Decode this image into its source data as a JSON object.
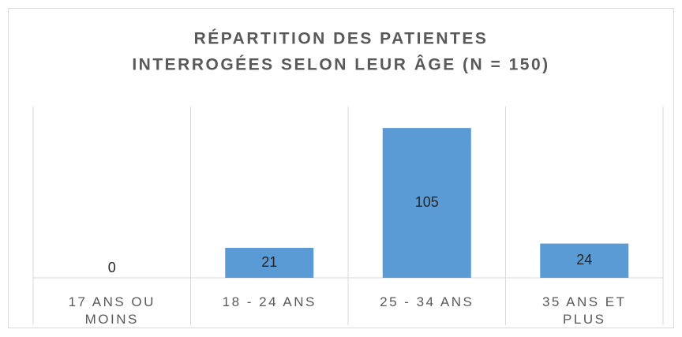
{
  "chart_data": {
    "type": "bar",
    "title": [
      "RÉPARTITION DES PATIENTES",
      "INTERROGÉES SELON LEUR ÂGE (N = 150)"
    ],
    "categories": [
      "17 ANS OU MOINS",
      "18 - 24 ANS",
      "25 - 34 ANS",
      "35 ANS ET PLUS"
    ],
    "values": [
      0,
      21,
      105,
      24
    ],
    "color": "#5b9bd5",
    "ylim": [
      0,
      120
    ]
  }
}
